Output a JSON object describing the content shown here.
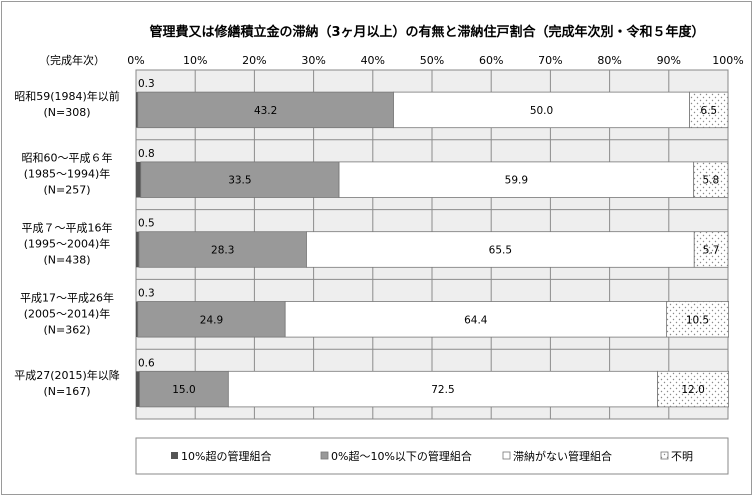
{
  "chart_data": {
    "type": "bar",
    "orientation": "horizontal",
    "stacked": true,
    "title": "管理費又は修繕積立金の滞納（3ヶ月以上）の有無と滞納住戸割合（完成年次別・令和５年度）",
    "ylabel": "（完成年次）",
    "xlim": [
      0,
      100
    ],
    "x_ticks": [
      "0%",
      "10%",
      "20%",
      "30%",
      "40%",
      "50%",
      "60%",
      "70%",
      "80%",
      "90%",
      "100%"
    ],
    "grid": true,
    "legend_position": "bottom",
    "categories": [
      [
        "昭和59(1984)年以前",
        "(N=308)"
      ],
      [
        "昭和60～平成６年",
        "(1985～1994)年",
        "(N=257)"
      ],
      [
        "平成７～平成16年",
        "(1995～2004)年",
        "(N=438)"
      ],
      [
        "平成17～平成26年",
        "(2005～2014)年",
        "(N=362)"
      ],
      [
        "平成27(2015)年以降",
        "(N=167)"
      ]
    ],
    "series": [
      {
        "name": "10%超の管理組合",
        "color": "#555555",
        "values": [
          0.3,
          0.8,
          0.5,
          0.3,
          0.6
        ]
      },
      {
        "name": "0%超～10%以下の管理組合",
        "color": "#999999",
        "values": [
          43.2,
          33.5,
          28.3,
          24.9,
          15.0
        ]
      },
      {
        "name": "滞納がない管理組合",
        "color": "#ffffff",
        "values": [
          50.0,
          59.9,
          65.5,
          64.4,
          72.5
        ]
      },
      {
        "name": "不明",
        "color": "dotted",
        "values": [
          6.5,
          5.8,
          5.7,
          10.5,
          12.0
        ]
      }
    ],
    "value_labels": [
      [
        "0.3",
        "43.2",
        "50.0",
        "6.5"
      ],
      [
        "0.8",
        "33.5",
        "59.9",
        "5.8"
      ],
      [
        "0.5",
        "28.3",
        "65.5",
        "5.7"
      ],
      [
        "0.3",
        "24.9",
        "64.4",
        "10.5"
      ],
      [
        "0.6",
        "15.0",
        "72.5",
        "12.0"
      ]
    ]
  }
}
